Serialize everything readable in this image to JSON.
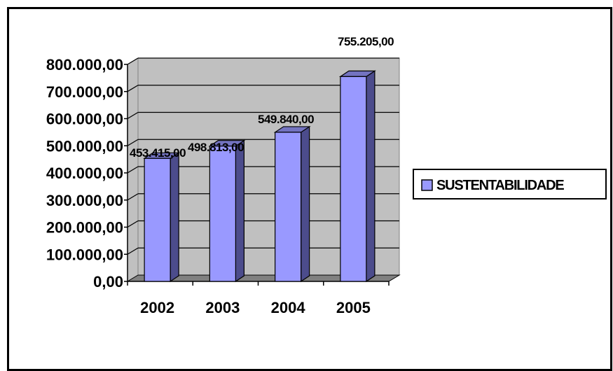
{
  "chart_data": {
    "type": "bar",
    "categories": [
      "2002",
      "2003",
      "2004",
      "2005"
    ],
    "series": [
      {
        "name": "SUSTENTABILIDADE",
        "values": [
          453415,
          498813,
          549840,
          755205
        ],
        "labels": [
          "453.415,00",
          "498.813,00",
          "549.840,00",
          "755.205,00"
        ]
      }
    ],
    "ylim": [
      0,
      800000
    ],
    "yticks": [
      0,
      100000,
      200000,
      300000,
      400000,
      500000,
      600000,
      700000,
      800000
    ],
    "ytick_labels": [
      "0,00",
      "100.000,00",
      "200.000,00",
      "300.000,00",
      "400.000,00",
      "500.000,00",
      "600.000,00",
      "700.000,00",
      "800.000,00"
    ],
    "grid": true,
    "legend_position": "right",
    "colors": {
      "bar_front": "#9999ff",
      "bar_side": "#4c4c8c",
      "bar_top": "#7373c0",
      "wall": "#c0c0c0",
      "floor": "#808080"
    }
  }
}
